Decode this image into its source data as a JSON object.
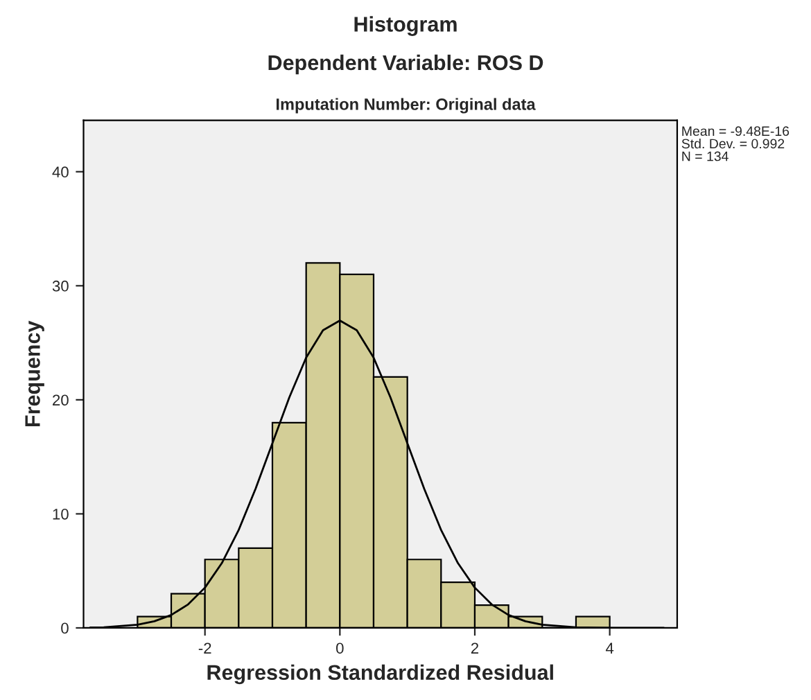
{
  "chart_data": {
    "type": "histogram",
    "title": "Histogram",
    "subtitle": "Dependent Variable: ROS D\nImputation Number: Original data",
    "xlabel": "Regression Standardized Residual",
    "ylabel": "Frequency",
    "bins": [
      -3,
      -2.5,
      -2,
      -1.5,
      -1,
      -0.5,
      0,
      0.5,
      1,
      1.5,
      2,
      2.5,
      3,
      3.5,
      4
    ],
    "values": [
      1,
      3,
      6,
      7,
      18,
      32,
      31,
      22,
      6,
      4,
      2,
      1,
      0,
      1
    ],
    "color": "#d3ce97",
    "series": [
      {
        "type": "line",
        "color": "#000000",
        "x": [
          -3.7,
          -3.5,
          -3,
          -2.75,
          -2.5,
          -2.25,
          -2,
          -1.75,
          -1.5,
          -1.25,
          -1,
          -0.75,
          -0.5,
          -0.25,
          0,
          0.25,
          0.5,
          0.75,
          1,
          1.25,
          1.5,
          1.75,
          2,
          2.25,
          2.5,
          2.75,
          3,
          3.5,
          4,
          4.8
        ],
        "values": [
          0.03,
          0.05,
          0.28,
          0.58,
          1.13,
          2.06,
          3.53,
          5.68,
          8.59,
          12.2,
          16.2,
          20.2,
          23.7,
          26.1,
          26.95,
          26.1,
          23.7,
          20.2,
          16.2,
          12.2,
          8.59,
          5.68,
          3.53,
          2.06,
          1.13,
          0.58,
          0.28,
          0.05,
          0.01,
          0
        ]
      }
    ],
    "annotations": [
      "Mean = -9.48E-16\nStd. Dev. = 0.992\nN = 134"
    ],
    "xlim": [
      -3.8,
      5.0
    ],
    "ylim": [
      0,
      44.5
    ],
    "xticks": [
      -2,
      0,
      2,
      4
    ],
    "yticks": [
      0,
      10,
      20,
      30,
      40
    ],
    "grid": false,
    "legend": false
  }
}
